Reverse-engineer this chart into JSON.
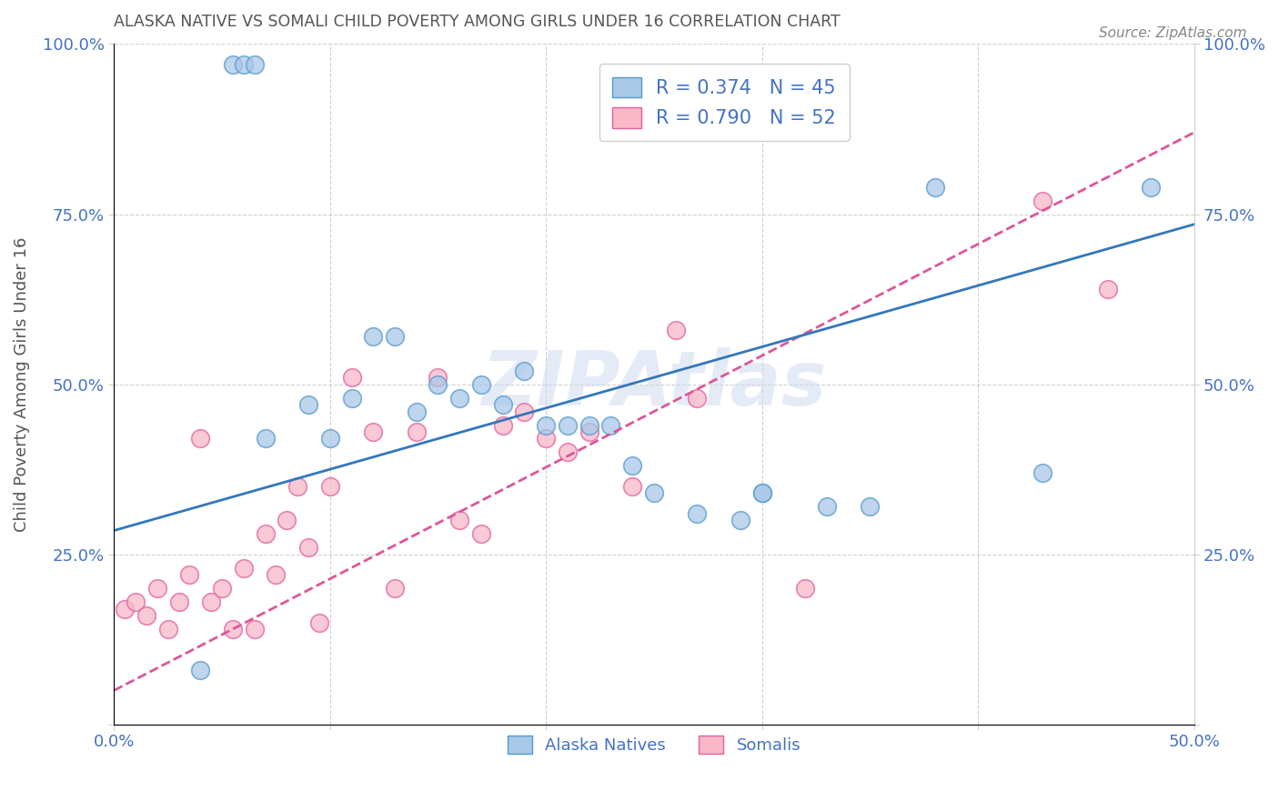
{
  "title": "ALASKA NATIVE VS SOMALI CHILD POVERTY AMONG GIRLS UNDER 16 CORRELATION CHART",
  "source": "Source: ZipAtlas.com",
  "ylabel": "Child Poverty Among Girls Under 16",
  "xlim": [
    0.0,
    0.5
  ],
  "ylim": [
    0.0,
    1.0
  ],
  "xticks": [
    0.0,
    0.1,
    0.2,
    0.3,
    0.4,
    0.5
  ],
  "xticklabels": [
    "0.0%",
    "",
    "",
    "",
    "",
    "50.0%"
  ],
  "yticks": [
    0.0,
    0.25,
    0.5,
    0.75,
    1.0
  ],
  "yticklabels": [
    "",
    "25.0%",
    "50.0%",
    "75.0%",
    "100.0%"
  ],
  "watermark": "ZIPAtlas",
  "legend_blue_label": "Alaska Natives",
  "legend_pink_label": "Somalis",
  "legend_blue_r": "R = 0.374",
  "legend_blue_n": "N = 45",
  "legend_pink_r": "R = 0.790",
  "legend_pink_n": "N = 52",
  "blue_color": "#a8c8e8",
  "pink_color": "#f8b8c8",
  "blue_edge_color": "#5599cc",
  "pink_edge_color": "#e060a0",
  "trend_blue_color": "#3377bb",
  "trend_pink_color": "#dd5599",
  "axis_color": "#4472C4",
  "grid_color": "#d0d0d0",
  "blue_scatter_x": [
    0.055,
    0.06,
    0.065,
    0.04,
    0.07,
    0.09,
    0.1,
    0.11,
    0.12,
    0.13,
    0.14,
    0.15,
    0.16,
    0.17,
    0.18,
    0.19,
    0.2,
    0.21,
    0.22,
    0.23,
    0.24,
    0.25,
    0.27,
    0.29,
    0.3,
    0.3,
    0.33,
    0.35,
    0.38,
    0.43,
    0.48
  ],
  "blue_scatter_y": [
    0.97,
    0.97,
    0.97,
    0.08,
    0.42,
    0.47,
    0.42,
    0.48,
    0.57,
    0.57,
    0.46,
    0.5,
    0.48,
    0.5,
    0.47,
    0.52,
    0.44,
    0.44,
    0.44,
    0.44,
    0.38,
    0.34,
    0.31,
    0.3,
    0.34,
    0.34,
    0.32,
    0.32,
    0.79,
    0.37,
    0.79
  ],
  "pink_scatter_x": [
    0.005,
    0.01,
    0.015,
    0.02,
    0.025,
    0.03,
    0.035,
    0.04,
    0.045,
    0.05,
    0.055,
    0.06,
    0.065,
    0.07,
    0.075,
    0.08,
    0.085,
    0.09,
    0.095,
    0.1,
    0.11,
    0.12,
    0.13,
    0.14,
    0.15,
    0.16,
    0.17,
    0.18,
    0.19,
    0.2,
    0.21,
    0.22,
    0.24,
    0.26,
    0.27,
    0.32,
    0.43,
    0.46
  ],
  "pink_scatter_y": [
    0.17,
    0.18,
    0.16,
    0.2,
    0.14,
    0.18,
    0.22,
    0.42,
    0.18,
    0.2,
    0.14,
    0.23,
    0.14,
    0.28,
    0.22,
    0.3,
    0.35,
    0.26,
    0.15,
    0.35,
    0.51,
    0.43,
    0.2,
    0.43,
    0.51,
    0.3,
    0.28,
    0.44,
    0.46,
    0.42,
    0.4,
    0.43,
    0.35,
    0.58,
    0.48,
    0.2,
    0.77,
    0.64
  ],
  "blue_trendline_x": [
    0.0,
    0.5
  ],
  "blue_trendline_y": [
    0.285,
    0.735
  ],
  "pink_trendline_x": [
    0.0,
    0.5
  ],
  "pink_trendline_y": [
    0.05,
    0.87
  ]
}
